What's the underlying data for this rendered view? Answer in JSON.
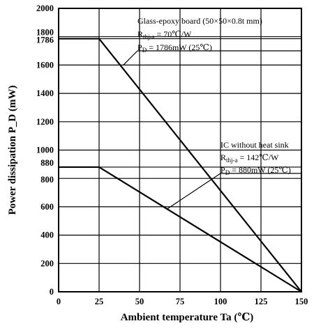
{
  "chart_data": {
    "type": "line",
    "xlabel": "Ambient temperature Ta (℃)",
    "ylabel": "Power dissipation P_D (mW)",
    "xlim": [
      0,
      150
    ],
    "ylim": [
      0,
      2000
    ],
    "x_ticks": [
      0,
      25,
      50,
      75,
      100,
      125,
      150
    ],
    "y_ticks": [
      0,
      200,
      400,
      600,
      800,
      880,
      1000,
      1200,
      1400,
      1600,
      1786,
      1800,
      2000
    ],
    "grid": true,
    "series": [
      {
        "x": [
          0,
          25,
          150
        ],
        "y": [
          1786,
          1786,
          0
        ]
      },
      {
        "x": [
          0,
          25,
          150
        ],
        "y": [
          880,
          880,
          0
        ]
      }
    ],
    "annotations": [
      {
        "lines": [
          "Glass-epoxy board (50×50×0.8t mm)",
          "R_thj-a = 70℃/W",
          "P_D = 1786mW (25℃)"
        ],
        "points_to": {
          "x": 40,
          "y": 1600
        }
      },
      {
        "lines": [
          "IC without heat sink",
          "R_thj-a = 142℃/W",
          "P_D = 880mW (25℃)"
        ],
        "points_to": {
          "x": 67,
          "y": 584
        }
      }
    ]
  }
}
